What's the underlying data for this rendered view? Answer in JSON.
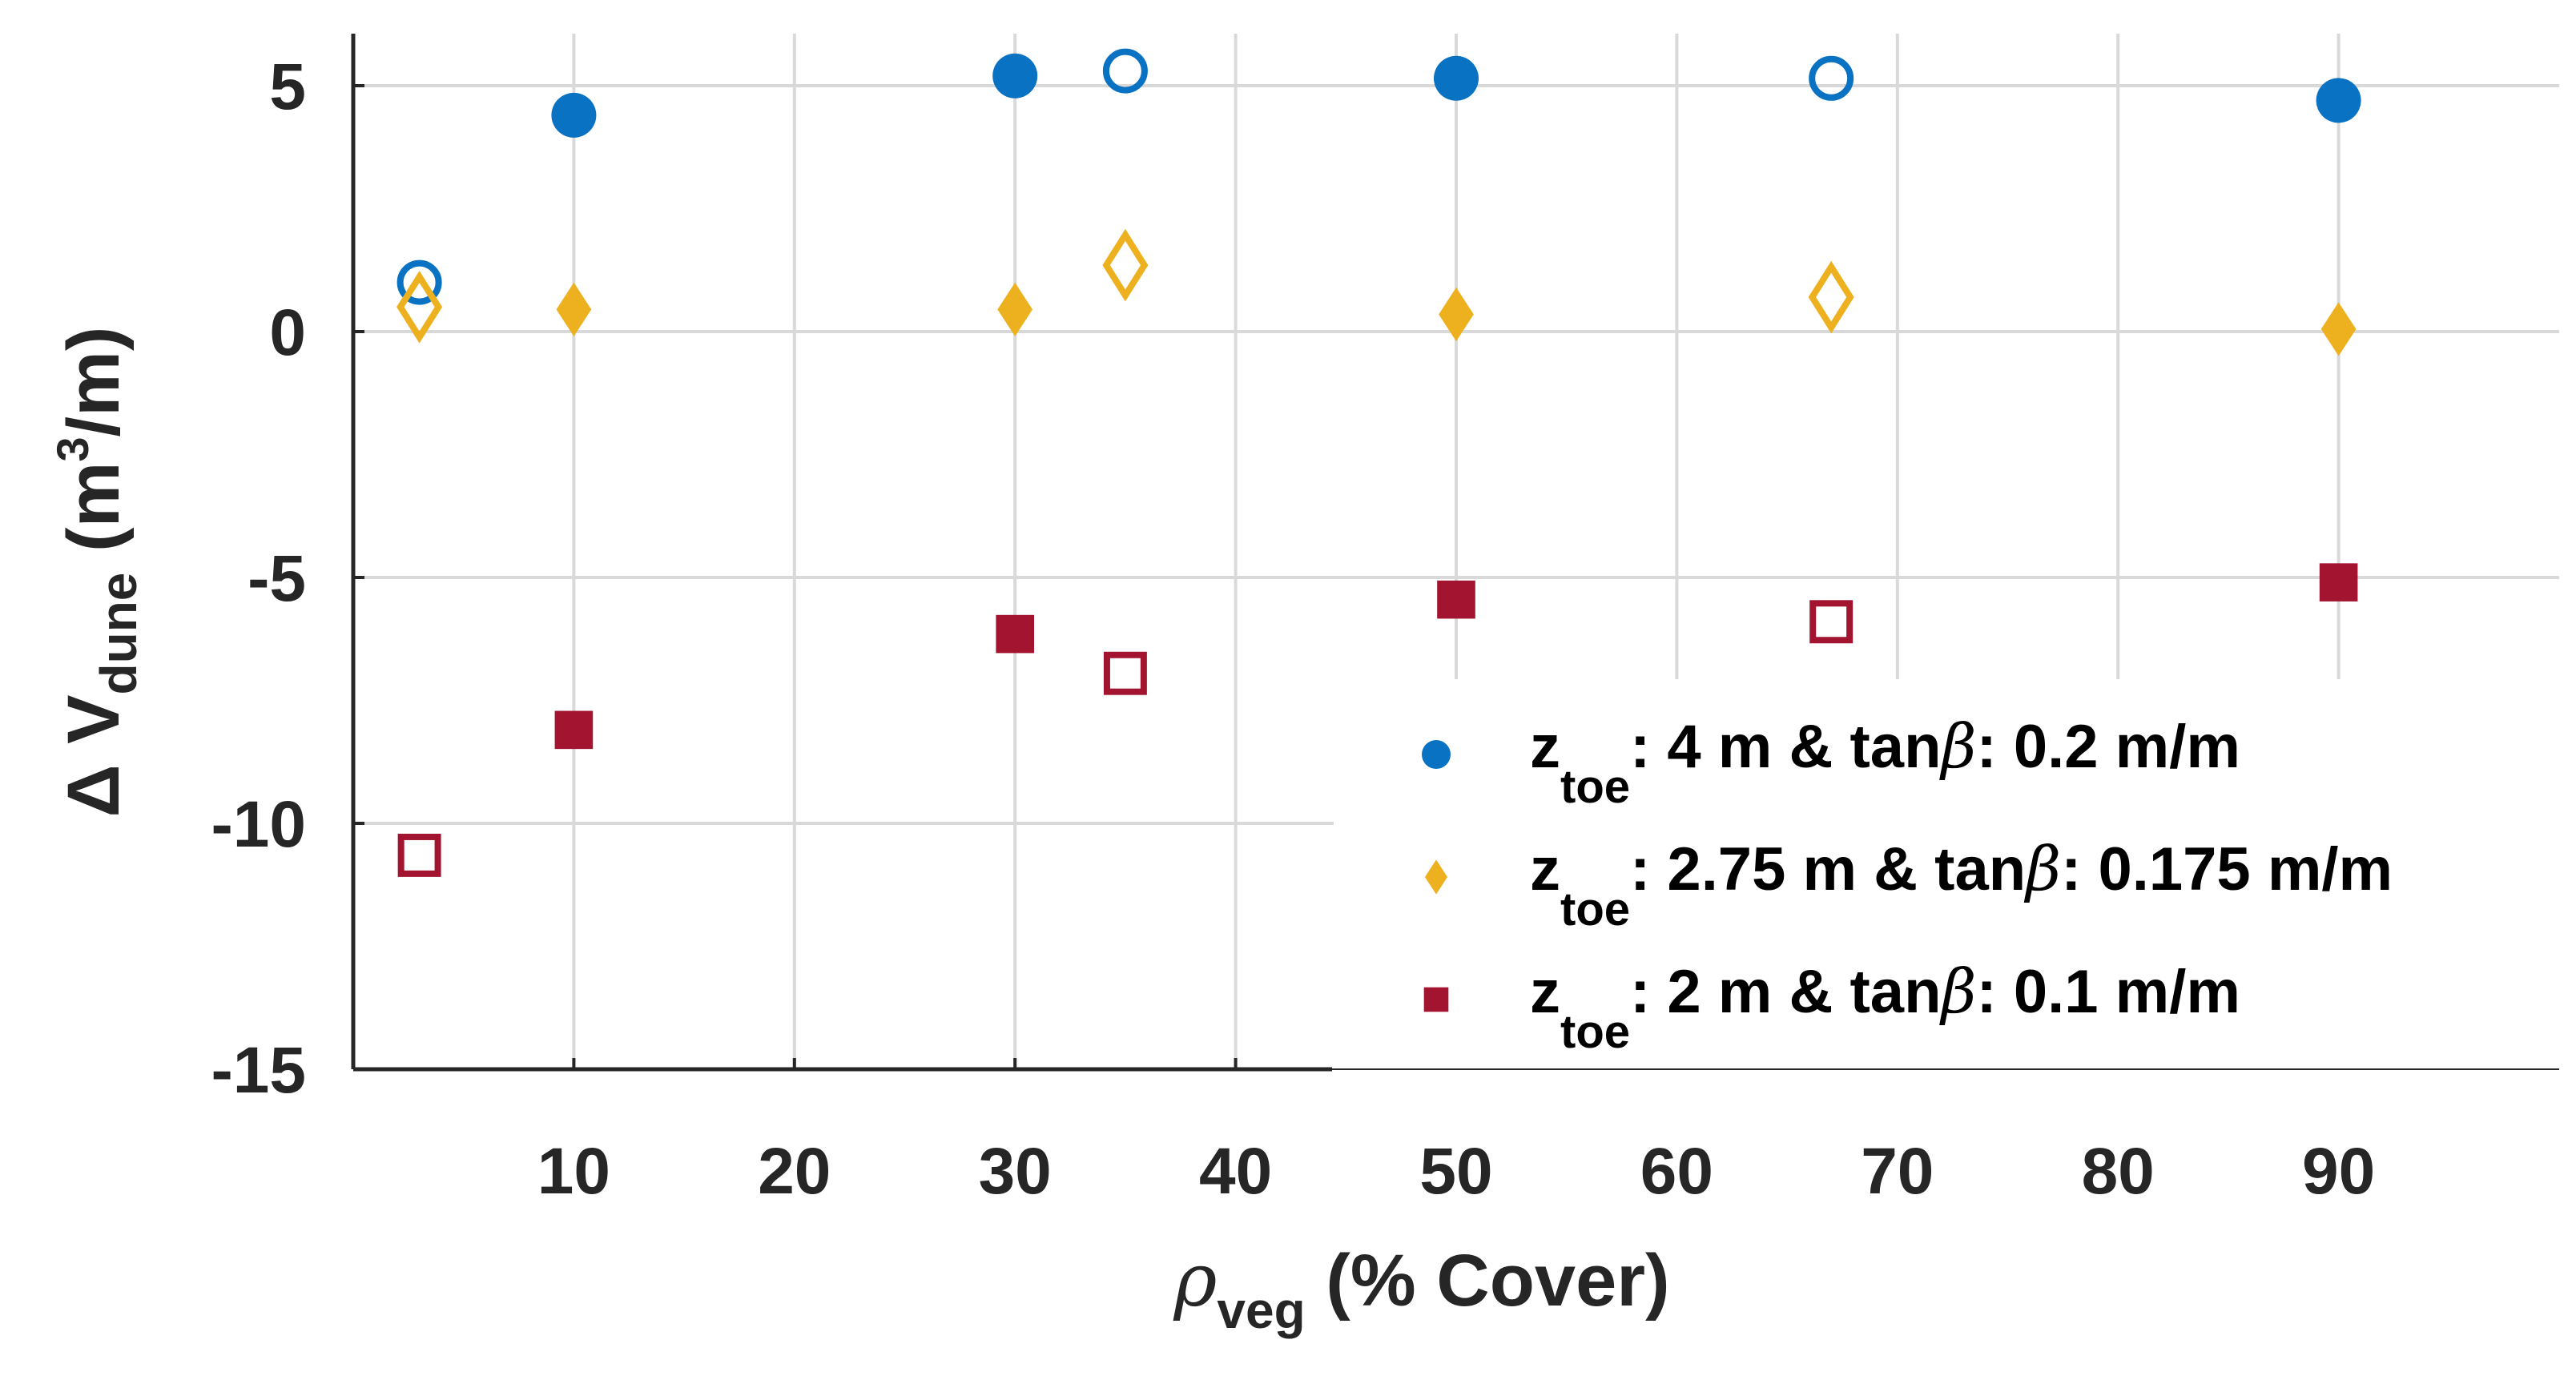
{
  "chart_data": {
    "type": "scatter",
    "xlabel": {
      "symbol": "ρ",
      "sub": "veg",
      "text": " (% Cover)"
    },
    "ylabel": {
      "delta": "Δ",
      "symbol": "V",
      "sub": "dune",
      "unit_open": " (m",
      "unit_sup": "3",
      "unit_close": "/m)"
    },
    "xlim": [
      0,
      100
    ],
    "ylim": [
      -15,
      6
    ],
    "xticks": [
      10,
      20,
      30,
      40,
      50,
      60,
      70,
      80,
      90
    ],
    "yticks": [
      5,
      0,
      -5,
      -10,
      -15
    ],
    "grid": true,
    "legend_position": "lower-right",
    "series": [
      {
        "name": "z_toe: 4 m & tanβ: 0.2 m/m",
        "legend": {
          "z": "z",
          "sub": "toe",
          "mid": ": 4 m & tan",
          "beta": "β",
          "tail": ": 0.2 m/m"
        },
        "marker": "circle",
        "color": "#0a72c3",
        "filled": [
          {
            "x": 10,
            "y": 4.4
          },
          {
            "x": 30,
            "y": 5.2
          },
          {
            "x": 50,
            "y": 5.15
          },
          {
            "x": 90,
            "y": 4.7
          }
        ],
        "open": [
          {
            "x": 3,
            "y": 1.0
          },
          {
            "x": 35,
            "y": 5.3
          },
          {
            "x": 67,
            "y": 5.15
          }
        ]
      },
      {
        "name": "z_toe: 2.75 m & tanβ: 0.175 m/m",
        "legend": {
          "z": "z",
          "sub": "toe",
          "mid": ": 2.75 m & tan",
          "beta": "β",
          "tail": ": 0.175 m/m"
        },
        "marker": "diamond",
        "color": "#edb120",
        "filled": [
          {
            "x": 10,
            "y": 0.45
          },
          {
            "x": 30,
            "y": 0.45
          },
          {
            "x": 50,
            "y": 0.35
          },
          {
            "x": 90,
            "y": 0.05
          }
        ],
        "open": [
          {
            "x": 3,
            "y": 0.5
          },
          {
            "x": 35,
            "y": 1.35
          },
          {
            "x": 67,
            "y": 0.7
          }
        ]
      },
      {
        "name": "z_toe: 2 m & tanβ: 0.1 m/m",
        "legend": {
          "z": "z",
          "sub": "toe",
          "mid": ": 2 m & tan",
          "beta": "β",
          "tail": ": 0.1 m/m"
        },
        "marker": "square",
        "color": "#a2142f",
        "filled": [
          {
            "x": 10,
            "y": -8.1
          },
          {
            "x": 30,
            "y": -6.15
          },
          {
            "x": 50,
            "y": -5.45
          },
          {
            "x": 90,
            "y": -5.1
          }
        ],
        "open": [
          {
            "x": 3,
            "y": -10.65
          },
          {
            "x": 35,
            "y": -6.95
          },
          {
            "x": 67,
            "y": -5.9
          }
        ]
      }
    ]
  }
}
